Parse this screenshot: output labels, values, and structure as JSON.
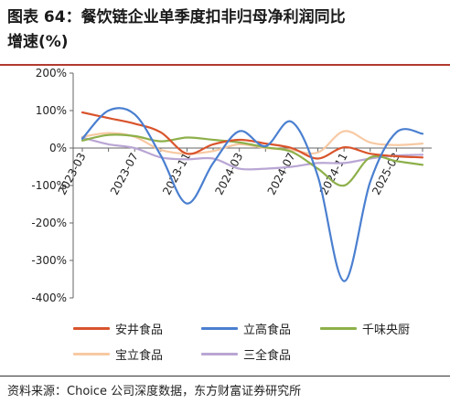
{
  "header": {
    "title_line1": "图表 64：餐饮链企业单季度扣非归母净利润同比",
    "title_line2": "增速(%)"
  },
  "source": "资料来源：Choice 公司深度数据，东方财富证券研究所",
  "chart_data": {
    "type": "line",
    "x": [
      "2023-03",
      "2023-05",
      "2023-07",
      "2023-09",
      "2023-11",
      "2024-01",
      "2024-03",
      "2024-05",
      "2024-07",
      "2024-09",
      "2024-11",
      "2025-01",
      "2025-03",
      "2025-05"
    ],
    "x_tick_labels": [
      "2023-03",
      "2023-07",
      "2023-11",
      "2024-03",
      "2024-07",
      "2024-11",
      "2025-03"
    ],
    "y_ticks": [
      -400,
      -300,
      -200,
      -100,
      0,
      100,
      200
    ],
    "y_tick_labels": [
      "-400%",
      "-300%",
      "-200%",
      "-100%",
      "0%",
      "100%",
      "200%"
    ],
    "ylim": [
      -400,
      200
    ],
    "series": [
      {
        "name": "安井食品",
        "color": "#d9542c",
        "values": [
          95,
          80,
          65,
          42,
          -15,
          10,
          22,
          12,
          0,
          -28,
          2,
          -15,
          -22,
          -25
        ]
      },
      {
        "name": "立高食品",
        "color": "#4a7fd0",
        "values": [
          25,
          100,
          90,
          -20,
          -148,
          -40,
          45,
          5,
          70,
          -75,
          -355,
          -90,
          42,
          38
        ]
      },
      {
        "name": "千味央厨",
        "color": "#8db04a",
        "values": [
          20,
          35,
          32,
          18,
          28,
          22,
          15,
          2,
          -10,
          -55,
          -100,
          -25,
          -35,
          -45
        ]
      },
      {
        "name": "宝立食品",
        "color": "#f7c9a3",
        "values": [
          30,
          40,
          30,
          -5,
          -15,
          -8,
          10,
          0,
          -5,
          -12,
          45,
          15,
          8,
          12
        ]
      },
      {
        "name": "三全食品",
        "color": "#b9a6d4",
        "values": [
          28,
          10,
          0,
          -25,
          -30,
          -28,
          -55,
          -55,
          -50,
          -40,
          -40,
          -28,
          -20,
          -18
        ]
      }
    ],
    "legend": [
      {
        "label": "安井食品",
        "color": "#d9542c"
      },
      {
        "label": "立高食品",
        "color": "#4a7fd0"
      },
      {
        "label": "千味央厨",
        "color": "#8db04a"
      },
      {
        "label": "宝立食品",
        "color": "#f7c9a3"
      },
      {
        "label": "三全食品",
        "color": "#b9a6d4"
      }
    ]
  }
}
